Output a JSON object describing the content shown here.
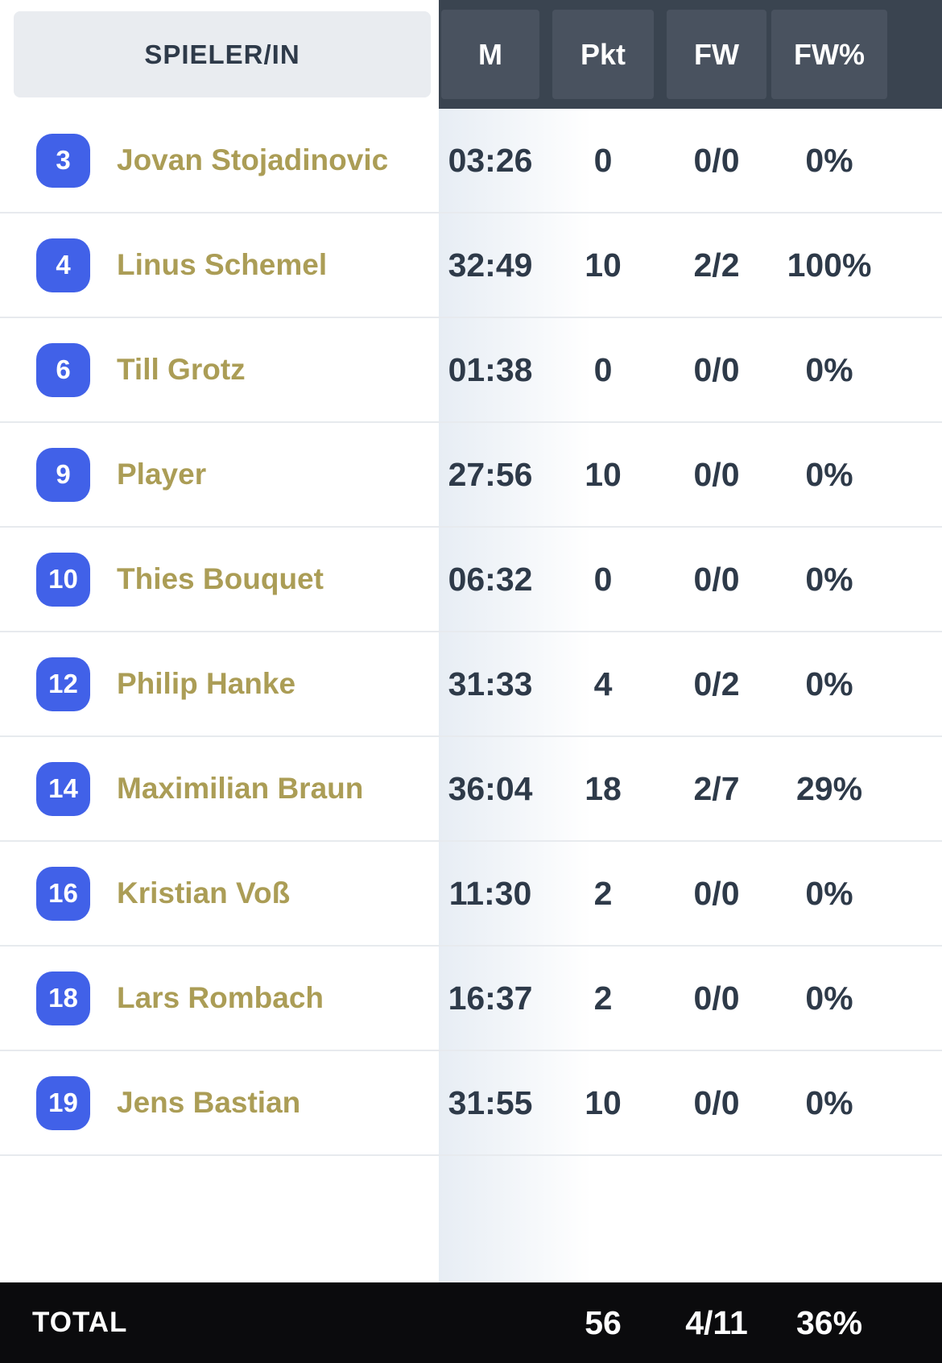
{
  "colors": {
    "badge_bg": "#4161e8",
    "player_name": "#ab9d56",
    "stat_text": "#2e3a49",
    "header_band": "#3a4450",
    "header_cell": "#49525f",
    "player_header_bg": "#e9ecf0",
    "separator": "#e7eaee",
    "total_bg": "#0b0b0d",
    "gradient_edge": "#e7edf4"
  },
  "table": {
    "header": {
      "player_column": "SPIELER/IN",
      "stat_columns": [
        "M",
        "Pkt",
        "FW",
        "FW%"
      ]
    },
    "rows": [
      {
        "number": "3",
        "name": "Jovan Stojadinovic",
        "m": "03:26",
        "pkt": "0",
        "fw": "0/0",
        "fwp": "0%"
      },
      {
        "number": "4",
        "name": "Linus Schemel",
        "m": "32:49",
        "pkt": "10",
        "fw": "2/2",
        "fwp": "100%"
      },
      {
        "number": "6",
        "name": "Till Grotz",
        "m": "01:38",
        "pkt": "0",
        "fw": "0/0",
        "fwp": "0%"
      },
      {
        "number": "9",
        "name": "Player",
        "m": "27:56",
        "pkt": "10",
        "fw": "0/0",
        "fwp": "0%"
      },
      {
        "number": "10",
        "name": "Thies Bouquet",
        "m": "06:32",
        "pkt": "0",
        "fw": "0/0",
        "fwp": "0%"
      },
      {
        "number": "12",
        "name": "Philip Hanke",
        "m": "31:33",
        "pkt": "4",
        "fw": "0/2",
        "fwp": "0%"
      },
      {
        "number": "14",
        "name": "Maximilian Braun",
        "m": "36:04",
        "pkt": "18",
        "fw": "2/7",
        "fwp": "29%"
      },
      {
        "number": "16",
        "name": "Kristian Voß",
        "m": "11:30",
        "pkt": "2",
        "fw": "0/0",
        "fwp": "0%"
      },
      {
        "number": "18",
        "name": "Lars Rombach",
        "m": "16:37",
        "pkt": "2",
        "fw": "0/0",
        "fwp": "0%"
      },
      {
        "number": "19",
        "name": "Jens Bastian",
        "m": "31:55",
        "pkt": "10",
        "fw": "0/0",
        "fwp": "0%"
      }
    ],
    "total": {
      "label": "TOTAL",
      "pkt": "56",
      "fw": "4/11",
      "fwp": "36%"
    }
  }
}
